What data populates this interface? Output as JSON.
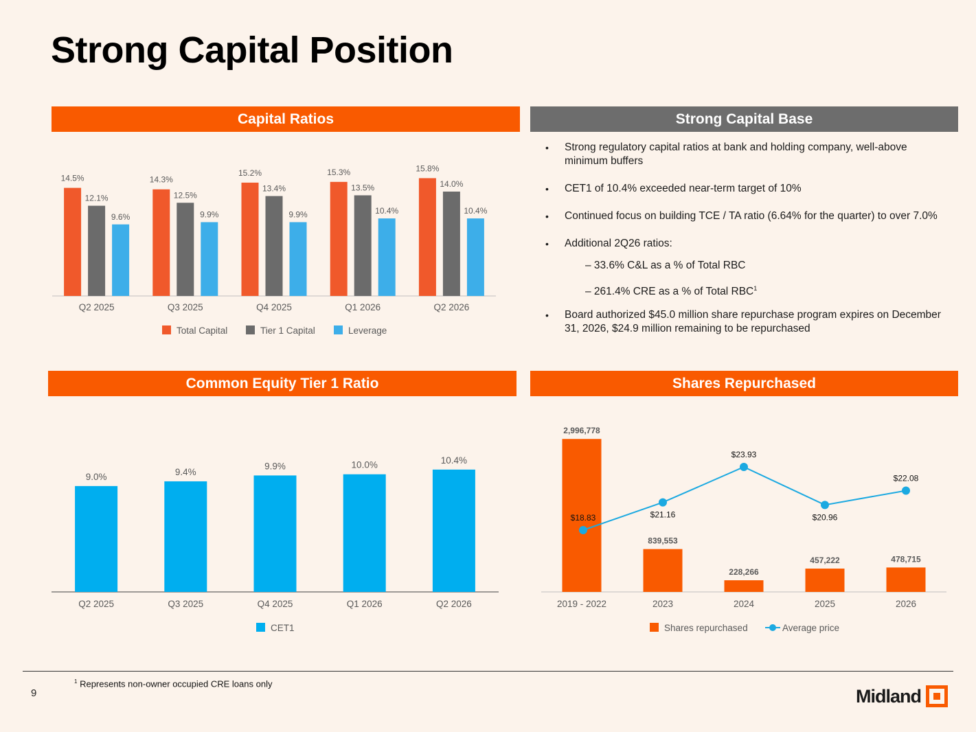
{
  "page": {
    "title": "Strong Capital Position",
    "page_number": "9",
    "footnote": "Represents non-owner occupied CRE loans only",
    "footnote_marker": "1",
    "logo_text": "Midland",
    "colors": {
      "accent": "#f95a00",
      "band_gray": "#6d6d6d",
      "background": "#fcf3eb"
    }
  },
  "sections": {
    "capital_ratios": "Capital Ratios",
    "capital_base": "Strong Capital Base",
    "cet1": "Common Equity Tier 1 Ratio",
    "repurchased": "Shares Repurchased"
  },
  "capital_base": {
    "bullets": [
      {
        "text": "Strong regulatory capital ratios at bank and holding company, well-above minimum buffers"
      },
      {
        "text": "CET1 of 10.4% exceeded near-term target of 10%"
      },
      {
        "text": "Continued focus on building TCE / TA ratio (6.64% for the quarter) to over 7.0%"
      },
      {
        "text": "Additional 2Q26 ratios:",
        "sub": [
          {
            "text": "– 33.6% C&L as a % of Total RBC",
            "sup": ""
          },
          {
            "text": "– 261.4% CRE as a % of Total RBC",
            "sup": "1"
          }
        ]
      },
      {
        "text": "Board authorized $45.0 million share repurchase program expires on December 31, 2026, $24.9 million remaining to be repurchased"
      }
    ]
  },
  "chart_data": [
    {
      "type": "bar",
      "categories": [
        "Q2 2025",
        "Q3 2025",
        "Q4 2025",
        "Q1 2026",
        "Q2 2026"
      ],
      "series": [
        {
          "name": "Total Capital",
          "values": [
            14.5,
            14.3,
            15.2,
            15.3,
            15.8
          ],
          "labels": [
            "14.5%",
            "14.3%",
            "15.2%",
            "15.3%",
            "15.8%"
          ],
          "color": "#f0592b"
        },
        {
          "name": "Tier 1 Capital",
          "values": [
            12.1,
            12.5,
            13.4,
            13.5,
            14.0
          ],
          "labels": [
            "12.1%",
            "12.5%",
            "13.4%",
            "13.5%",
            "14.0%"
          ],
          "color": "#6b6b6b"
        },
        {
          "name": "Leverage",
          "values": [
            9.6,
            9.9,
            9.9,
            10.4,
            10.4
          ],
          "labels": [
            "9.6%",
            "9.9%",
            "9.9%",
            "10.4%",
            "10.4%"
          ],
          "color": "#3daee9"
        }
      ],
      "ylim": [
        0,
        17.5
      ],
      "legend": "bottom"
    },
    {
      "type": "bar",
      "categories": [
        "Q2 2025",
        "Q3 2025",
        "Q4 2025",
        "Q1 2026",
        "Q2 2026"
      ],
      "series": [
        {
          "name": "CET1",
          "values": [
            9.0,
            9.4,
            9.9,
            10.0,
            10.4
          ],
          "labels": [
            "9.0%",
            "9.4%",
            "9.9%",
            "10.0%",
            "10.4%"
          ],
          "color": "#00aeef"
        }
      ],
      "ylim": [
        0,
        11.5
      ],
      "legend": "bottom"
    },
    {
      "type": "bar",
      "categories": [
        "2019 - 2022",
        "2023",
        "2024",
        "2025",
        "2026"
      ],
      "series": [
        {
          "name": "Shares repurchased",
          "type": "bar",
          "values": [
            2996778,
            839553,
            228266,
            457222,
            478715
          ],
          "labels": [
            "2,996,778",
            "839,553",
            "228,266",
            "457,222",
            "478,715"
          ],
          "color": "#f95a00"
        },
        {
          "name": "Average price",
          "type": "line",
          "values": [
            18.83,
            21.16,
            23.93,
            20.96,
            22.08
          ],
          "labels": [
            "$18.83",
            "$21.16",
            "$23.93",
            "$20.96",
            "$22.08"
          ],
          "color": "#1ba9e1"
        }
      ],
      "ylim_bars": [
        0,
        3000000
      ],
      "ylim_line": [
        14,
        25
      ],
      "legend": "bottom"
    }
  ]
}
